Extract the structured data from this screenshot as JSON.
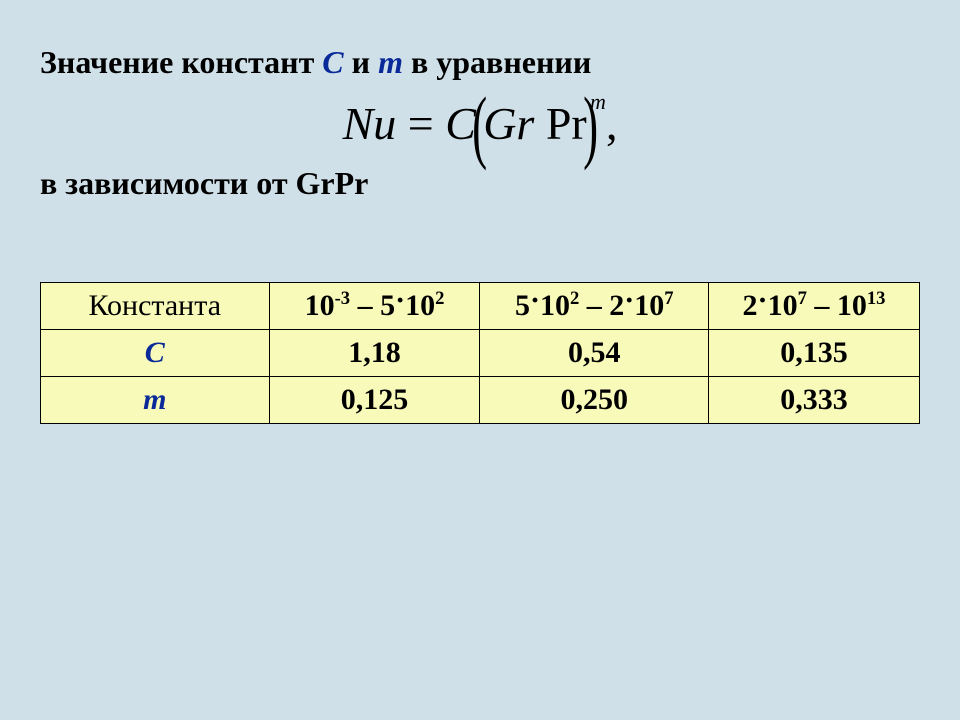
{
  "heading": {
    "prefix": "Значение констант ",
    "C": "С",
    "mid": " и ",
    "m": "m",
    "suffix": " в уравнении"
  },
  "equation": {
    "Nu": "Nu",
    "eq": " = ",
    "C": "C",
    "Gr": "Gr",
    "Pr": "Pr",
    "exp": "m",
    "tail": ","
  },
  "subheading": "в зависимости от GrPr",
  "table": {
    "header_label": "Константа",
    "ranges": [
      {
        "a_base": "10",
        "a_exp": "-3",
        "sep": " – ",
        "b_coef": "5",
        "b_base": "10",
        "b_exp": "2"
      },
      {
        "a_coef": "5",
        "a_base": "10",
        "a_exp": "2",
        "sep": " – ",
        "b_coef": "2",
        "b_base": "10",
        "b_exp": "7"
      },
      {
        "a_coef": "2",
        "a_base": "10",
        "a_exp": "7",
        "sep": " – ",
        "b_base": "10",
        "b_exp": "13"
      }
    ],
    "rows": [
      {
        "label": "C",
        "values": [
          "1,18",
          "0,54",
          "0,135"
        ]
      },
      {
        "label": "m",
        "values": [
          "0,125",
          "0,250",
          "0,333"
        ]
      }
    ],
    "col_widths_pct": [
      26,
      24,
      26,
      24
    ],
    "colors": {
      "page_bg": "#d0e0e8",
      "cell_bg": "#f7fab9",
      "border": "#000000",
      "accent": "#0a2a9a",
      "text": "#000000"
    },
    "font_sizes_pt": {
      "heading": 24,
      "equation": 34,
      "table": 22
    }
  }
}
